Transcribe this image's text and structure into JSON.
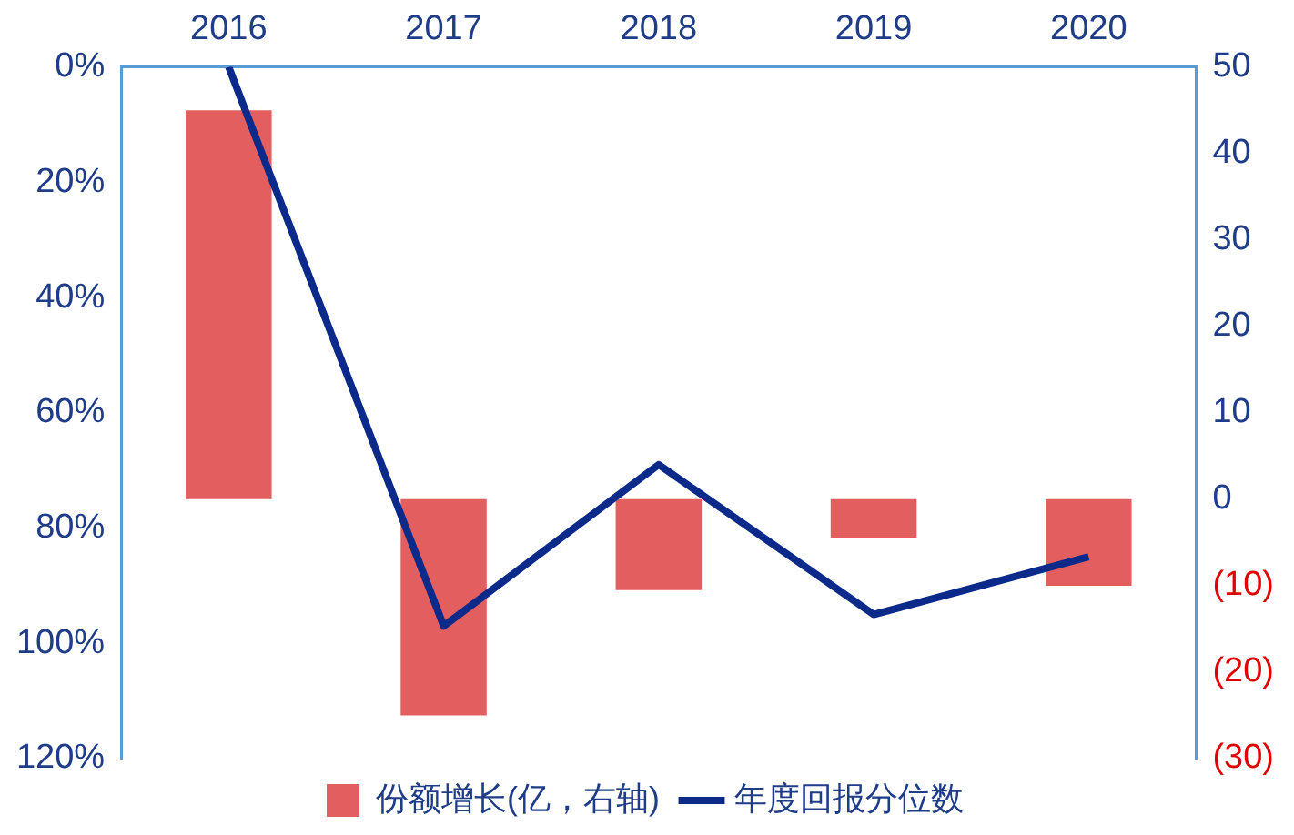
{
  "chart_data": {
    "type": "bar",
    "categories": [
      "2016",
      "2017",
      "2018",
      "2019",
      "2020"
    ],
    "series": [
      {
        "name": "份额增长(亿，右轴)",
        "axis": "y2",
        "color": "#e35f5f",
        "values": [
          45,
          -25,
          -10.5,
          -4.5,
          -10
        ]
      },
      {
        "name": "年度回报分位数",
        "type": "line",
        "axis": "y",
        "color": "#0c2a8a",
        "values": [
          0,
          97,
          69,
          95,
          85
        ],
        "marker": "none"
      }
    ],
    "ylim": [
      120,
      0
    ],
    "yticks": [
      {
        "value": 0,
        "label": "0%"
      },
      {
        "value": 20,
        "label": "20%"
      },
      {
        "value": 40,
        "label": "40%"
      },
      {
        "value": 60,
        "label": "60%"
      },
      {
        "value": 80,
        "label": "80%"
      },
      {
        "value": 100,
        "label": "100%"
      },
      {
        "value": 120,
        "label": "120%"
      }
    ],
    "y2lim": [
      -30,
      50
    ],
    "y2ticks": [
      50,
      40,
      30,
      20,
      10,
      0,
      {
        "value": -10,
        "label": "(10)"
      },
      {
        "value": -20,
        "label": "(20)"
      },
      {
        "value": -30,
        "label": "(30)"
      }
    ],
    "grid": false,
    "legend": "bottom"
  }
}
